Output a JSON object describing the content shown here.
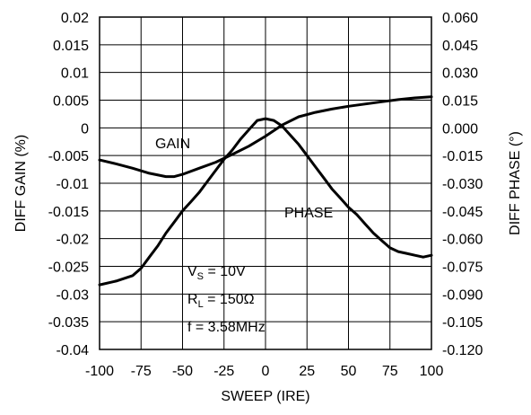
{
  "chart_data": {
    "type": "line",
    "xlabel": "SWEEP (IRE)",
    "ylabel_left": "DIFF GAIN (%)",
    "ylabel_right": "DIFF PHASE (°)",
    "xlim": [
      -100,
      100
    ],
    "ylim_left": [
      -0.04,
      0.02
    ],
    "ylim_right": [
      -0.12,
      0.06
    ],
    "x_ticks": [
      "-100",
      "-75",
      "-50",
      "-25",
      "0",
      "25",
      "50",
      "75",
      "100"
    ],
    "y_ticks_left": [
      "0.02",
      "0.015",
      "0.01",
      "0.005",
      "0",
      "-0.005",
      "-0.01",
      "-0.015",
      "-0.02",
      "-0.025",
      "-0.03",
      "-0.035",
      "-0.04"
    ],
    "y_ticks_right": [
      "0.060",
      "0.045",
      "0.030",
      "0.015",
      "0.000",
      "-0.015",
      "-0.030",
      "-0.045",
      "-0.060",
      "-0.075",
      "-0.090",
      "-0.105",
      "-0.120"
    ],
    "grid": true,
    "series": [
      {
        "name": "GAIN",
        "axis": "left",
        "x": [
          -100,
          -90,
          -80,
          -70,
          -60,
          -55,
          -50,
          -40,
          -30,
          -20,
          -10,
          0,
          10,
          20,
          30,
          40,
          50,
          60,
          70,
          80,
          90,
          100
        ],
        "values": [
          -0.0058,
          -0.0065,
          -0.0073,
          -0.0082,
          -0.0088,
          -0.0088,
          -0.0084,
          -0.0073,
          -0.0062,
          -0.0048,
          -0.0033,
          -0.0015,
          0.0005,
          0.002,
          0.0028,
          0.0034,
          0.0039,
          0.0043,
          0.0047,
          0.0051,
          0.0054,
          0.0056
        ]
      },
      {
        "name": "PHASE",
        "axis": "right",
        "x": [
          -100,
          -90,
          -80,
          -75,
          -70,
          -65,
          -60,
          -55,
          -50,
          -45,
          -40,
          -35,
          -30,
          -25,
          -20,
          -15,
          -10,
          -5,
          0,
          5,
          10,
          15,
          20,
          25,
          30,
          35,
          40,
          45,
          50,
          55,
          60,
          65,
          70,
          75,
          80,
          85,
          90,
          95,
          100
        ],
        "values": [
          -0.085,
          -0.083,
          -0.08,
          -0.076,
          -0.07,
          -0.064,
          -0.057,
          -0.051,
          -0.045,
          -0.04,
          -0.035,
          -0.029,
          -0.023,
          -0.017,
          -0.012,
          -0.006,
          -0.001,
          0.004,
          0.005,
          0.004,
          0.001,
          -0.004,
          -0.009,
          -0.015,
          -0.021,
          -0.027,
          -0.033,
          -0.038,
          -0.043,
          -0.047,
          -0.052,
          -0.057,
          -0.061,
          -0.065,
          -0.067,
          -0.068,
          -0.069,
          -0.07,
          -0.069
        ]
      }
    ],
    "annotations": {
      "gain_label": "GAIN",
      "phase_label": "PHASE",
      "vs_main": "V",
      "vs_sub": "S",
      "vs_rest": " = 10V",
      "rl_main": "R",
      "rl_sub": "L",
      "rl_rest": " = 150Ω",
      "freq": "f = 3.58MHz"
    }
  }
}
